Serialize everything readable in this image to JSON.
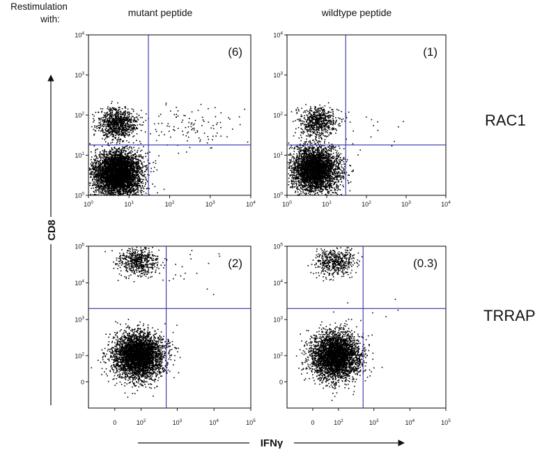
{
  "header": {
    "line1": "Restimulation",
    "line2": "with:"
  },
  "columns": [
    "mutant peptide",
    "wildtype peptide"
  ],
  "rows": [
    "RAC1",
    "TRRAP"
  ],
  "axes": {
    "y_title": "CD8",
    "x_title": "IFNγ"
  },
  "colors": {
    "dots": "#000000",
    "gates": "#3030b0",
    "frame": "#000000"
  },
  "chart_data": [
    {
      "type": "scatter",
      "row": "RAC1",
      "column": "mutant peptide",
      "annotation": "(6)",
      "xscale": "log",
      "yscale": "log",
      "xlim": [
        1,
        10000
      ],
      "ylim": [
        1,
        10000
      ],
      "x_ticks": [
        "10^0",
        "10^1",
        "10^2",
        "10^3",
        "10^4"
      ],
      "y_ticks": [
        "10^0",
        "10^1",
        "10^2",
        "10^3",
        "10^4"
      ],
      "gate": {
        "x": 30,
        "y": 18
      },
      "clusters": [
        {
          "label": "CD8 high, IFNγ low",
          "x_center": 5,
          "y_center": 65,
          "approx_events": 900
        },
        {
          "label": "CD8 low, IFNγ low",
          "x_center": 5,
          "y_center": 3.5,
          "approx_events": 4500
        },
        {
          "label": "CD8 high, IFNγ high",
          "x_center": 300,
          "y_center": 45,
          "approx_events": 110
        }
      ]
    },
    {
      "type": "scatter",
      "row": "RAC1",
      "column": "wildtype peptide",
      "annotation": "(1)",
      "xscale": "log",
      "yscale": "log",
      "xlim": [
        1,
        10000
      ],
      "ylim": [
        1,
        10000
      ],
      "x_ticks": [
        "10^0",
        "10^1",
        "10^2",
        "10^3",
        "10^4"
      ],
      "y_ticks": [
        "10^0",
        "10^1",
        "10^2",
        "10^3",
        "10^4"
      ],
      "gate": {
        "x": 30,
        "y": 18
      },
      "clusters": [
        {
          "label": "CD8 high, IFNγ low",
          "x_center": 6,
          "y_center": 70,
          "approx_events": 650
        },
        {
          "label": "CD8 low, IFNγ low",
          "x_center": 5,
          "y_center": 4.5,
          "approx_events": 3500
        },
        {
          "label": "CD8 high, IFNγ high",
          "x_center": 200,
          "y_center": 40,
          "approx_events": 15
        }
      ]
    },
    {
      "type": "scatter",
      "row": "TRRAP",
      "column": "mutant peptide",
      "annotation": "(2)",
      "xscale": "biexponential",
      "yscale": "biexponential",
      "xlim": [
        -100,
        100000
      ],
      "ylim": [
        -100,
        100000
      ],
      "x_ticks": [
        "0",
        "10^2",
        "10^3",
        "10^4",
        "10^5"
      ],
      "y_ticks": [
        "0",
        "10^2",
        "10^3",
        "10^4",
        "10^5"
      ],
      "gate": {
        "x": 500,
        "y": 2000
      },
      "clusters": [
        {
          "label": "CD8 high, IFNγ low",
          "x_center": 80,
          "y_center": 40000,
          "approx_events": 550
        },
        {
          "label": "CD8 low, IFNγ low",
          "x_center": 80,
          "y_center": 100,
          "approx_events": 3800
        },
        {
          "label": "CD8 high, IFNγ high",
          "x_center": 1500,
          "y_center": 30000,
          "approx_events": 20
        }
      ]
    },
    {
      "type": "scatter",
      "row": "TRRAP",
      "column": "wildtype peptide",
      "annotation": "(0.3)",
      "xscale": "biexponential",
      "yscale": "biexponential",
      "xlim": [
        -100,
        100000
      ],
      "ylim": [
        -100,
        100000
      ],
      "x_ticks": [
        "0",
        "10^2",
        "10^3",
        "10^4",
        "10^5"
      ],
      "y_ticks": [
        "0",
        "10^2",
        "10^3",
        "10^4",
        "10^5"
      ],
      "gate": {
        "x": 500,
        "y": 2000
      },
      "clusters": [
        {
          "label": "CD8 high, IFNγ low",
          "x_center": 80,
          "y_center": 40000,
          "approx_events": 500
        },
        {
          "label": "CD8 low, IFNγ low",
          "x_center": 80,
          "y_center": 100,
          "approx_events": 3500
        },
        {
          "label": "CD8 high, IFNγ high",
          "x_center": 1200,
          "y_center": 2500,
          "approx_events": 6
        }
      ]
    }
  ]
}
